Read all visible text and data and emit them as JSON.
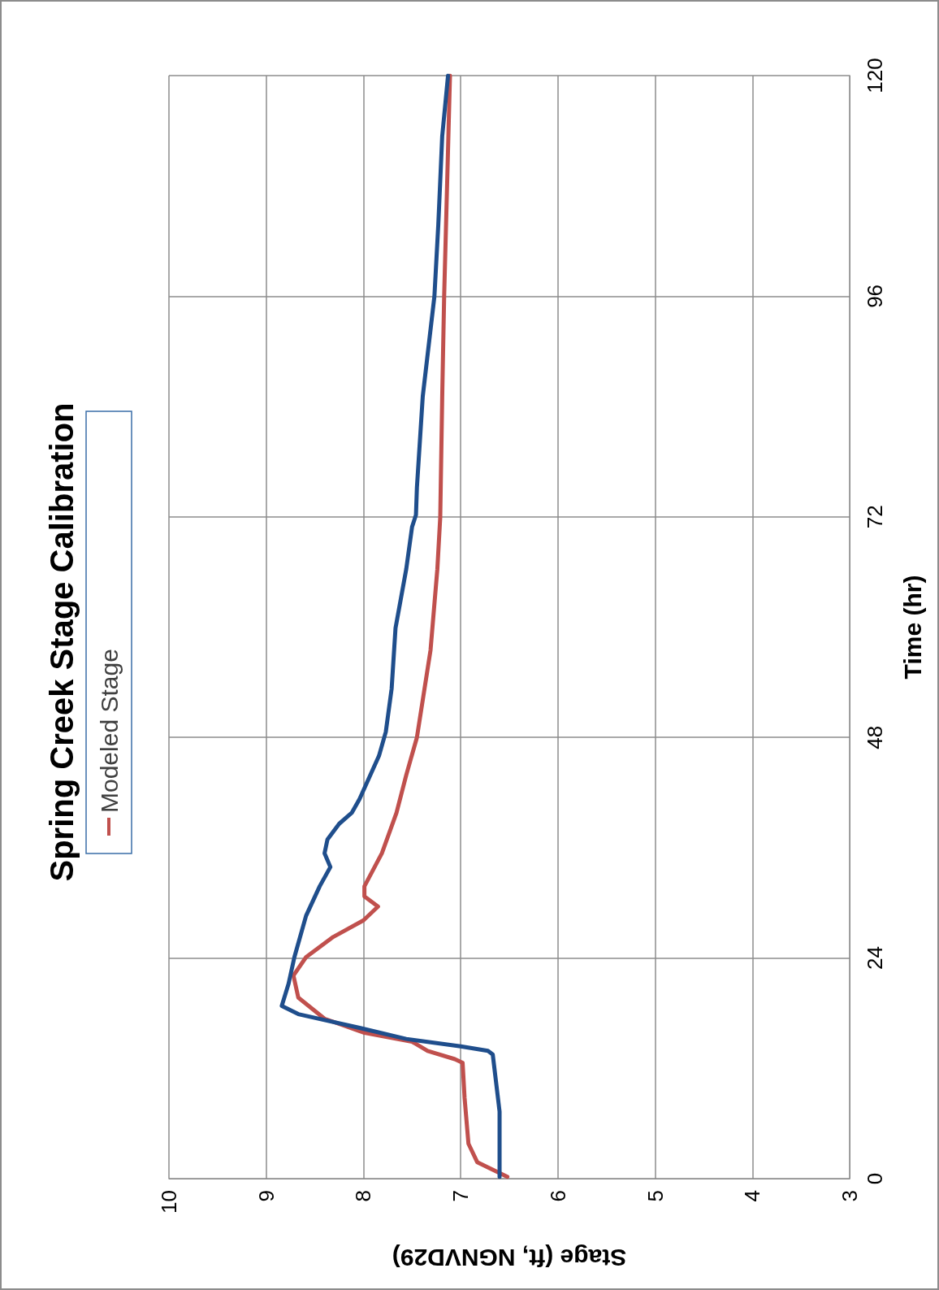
{
  "chart_data": {
    "type": "line",
    "title": "Spring Creek Stage Calibration",
    "xlabel": "Stage (ft, NGNVD29)",
    "ylabel": "Time (hr)",
    "xlim": [
      10,
      3
    ],
    "xticks": [
      10,
      9,
      8,
      7,
      6,
      5,
      4,
      3
    ],
    "ylim": [
      0,
      120
    ],
    "yticks": [
      0,
      24,
      48,
      72,
      96,
      120
    ],
    "grid": true,
    "legend": "left",
    "marker": "none",
    "line_style": "solid",
    "series": [
      {
        "name": "Modeled Stage",
        "color": "#c0504d",
        "values": [
          0.2,
          1.8,
          3.8,
          8.8,
          12.6,
          13.0,
          13.9,
          14.9,
          15.9,
          17.4,
          19.7,
          22.1,
          24.1,
          26.3,
          28.1,
          29.6,
          30.7,
          31.8,
          35.4,
          39.8,
          43.9,
          48,
          57.5,
          66.3,
          72,
          85,
          96,
          108,
          120
        ],
        "x": [
          6.52,
          6.83,
          6.92,
          6.96,
          6.98,
          7.06,
          7.34,
          7.5,
          8.0,
          8.4,
          8.67,
          8.72,
          8.59,
          8.31,
          8.0,
          7.85,
          7.99,
          7.99,
          7.81,
          7.66,
          7.56,
          7.45,
          7.31,
          7.24,
          7.21,
          7.19,
          7.17,
          7.14,
          7.11
        ]
      },
      {
        "color": "#1f4e8c",
        "values": [
          0.2,
          7.3,
          13.5,
          13.9,
          14.4,
          15.2,
          16.4,
          17.9,
          18.8,
          21.2,
          24.1,
          28.6,
          31.8,
          33.9,
          35.4,
          36.9,
          38.6,
          39.8,
          41.3,
          46.0,
          48.6,
          53.3,
          59.9,
          66.3,
          70.9,
          72.2,
          75.2,
          85.1,
          96,
          103.8,
          113.4,
          120
        ],
        "x": [
          6.6,
          6.6,
          6.67,
          6.72,
          7.0,
          7.56,
          8.04,
          8.67,
          8.84,
          8.77,
          8.71,
          8.59,
          8.45,
          8.34,
          8.4,
          8.37,
          8.25,
          8.12,
          8.04,
          7.84,
          7.77,
          7.71,
          7.67,
          7.56,
          7.5,
          7.46,
          7.45,
          7.39,
          7.27,
          7.23,
          7.19,
          7.13
        ]
      }
    ]
  }
}
